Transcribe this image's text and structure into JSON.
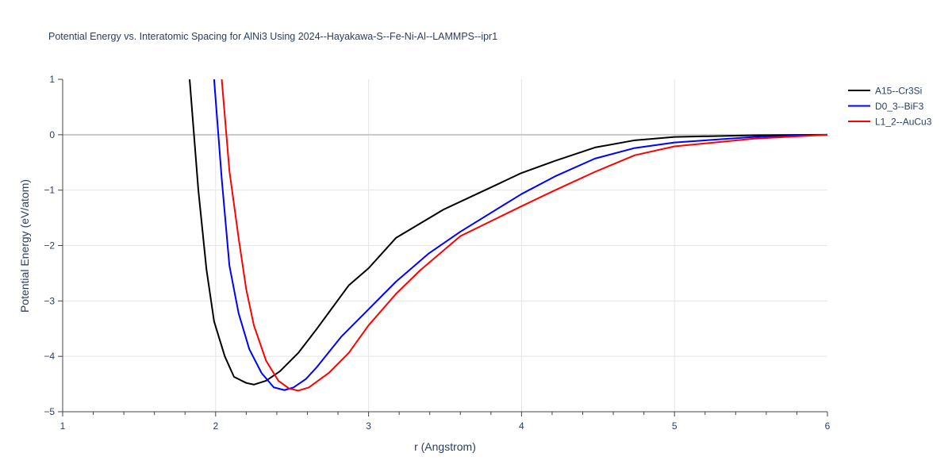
{
  "chart_data": {
    "type": "line",
    "title": "Potential Energy vs. Interatomic Spacing for AlNi3 Using 2024--Hayakawa-S--Fe-Ni-Al--LAMMPS--ipr1",
    "xlabel": "r (Angstrom)",
    "ylabel": "Potential Energy (eV/atom)",
    "xlim": [
      1,
      6
    ],
    "ylim": [
      -5,
      1
    ],
    "xticks": [
      "1",
      "2",
      "3",
      "4",
      "5",
      "6"
    ],
    "yticks": [
      "1",
      "0",
      "−1",
      "−2",
      "−3",
      "−4",
      "−5"
    ],
    "grid": true,
    "legend_position": "top-right",
    "series": [
      {
        "name": "A15--Cr3Si",
        "color": "#000000",
        "x": [
          1.83,
          1.887,
          1.94,
          1.99,
          2.06,
          2.12,
          2.2,
          2.25,
          2.33,
          2.42,
          2.54,
          2.66,
          2.87,
          3.0,
          3.18,
          3.49,
          3.8,
          4.0,
          4.22,
          4.48,
          4.74,
          5.0,
          5.52,
          6.0
        ],
        "y": [
          1.0,
          -1.0,
          -2.43,
          -3.37,
          -4.0,
          -4.37,
          -4.48,
          -4.51,
          -4.44,
          -4.27,
          -3.94,
          -3.51,
          -2.72,
          -2.41,
          -1.86,
          -1.35,
          -0.95,
          -0.69,
          -0.47,
          -0.23,
          -0.1,
          -0.04,
          -0.01,
          0.0
        ]
      },
      {
        "name": "D0_3--BiF3",
        "color": "#0000ff",
        "x": [
          1.99,
          2.04,
          2.09,
          2.15,
          2.22,
          2.3,
          2.38,
          2.45,
          2.51,
          2.59,
          2.66,
          2.82,
          3.0,
          3.18,
          3.39,
          3.6,
          4.0,
          4.22,
          4.48,
          4.74,
          5.0,
          5.52,
          6.0
        ],
        "y": [
          1.0,
          -0.8,
          -2.36,
          -3.22,
          -3.87,
          -4.3,
          -4.56,
          -4.61,
          -4.56,
          -4.41,
          -4.2,
          -3.65,
          -3.15,
          -2.65,
          -2.15,
          -1.75,
          -1.07,
          -0.75,
          -0.43,
          -0.24,
          -0.14,
          -0.04,
          0.0
        ]
      },
      {
        "name": "L1_2--AuCu3",
        "color": "#ff0000",
        "x": [
          2.04,
          2.09,
          2.15,
          2.2,
          2.25,
          2.33,
          2.41,
          2.48,
          2.54,
          2.61,
          2.74,
          2.87,
          3.0,
          3.18,
          3.34,
          3.6,
          4.0,
          4.22,
          4.48,
          4.74,
          5.0,
          5.52,
          6.0
        ],
        "y": [
          1.0,
          -0.65,
          -1.86,
          -2.79,
          -3.44,
          -4.08,
          -4.44,
          -4.58,
          -4.62,
          -4.56,
          -4.3,
          -3.94,
          -3.44,
          -2.87,
          -2.44,
          -1.83,
          -1.29,
          -1.0,
          -0.67,
          -0.37,
          -0.21,
          -0.07,
          0.0
        ]
      }
    ]
  }
}
